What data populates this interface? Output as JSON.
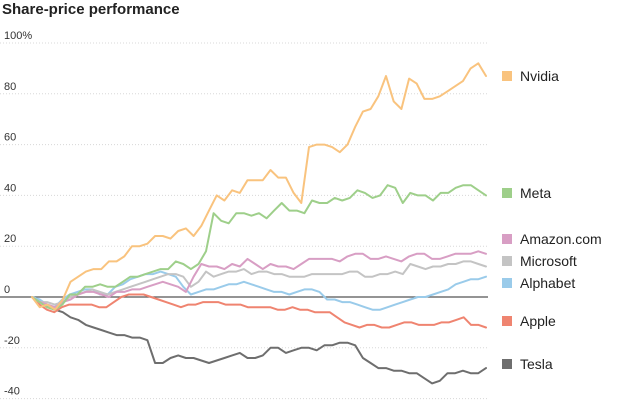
{
  "chart_data": {
    "type": "line",
    "title": "Share-price performance",
    "xlabel": "",
    "ylabel": "",
    "ylim": [
      -45,
      102
    ],
    "yticks": [
      100,
      80,
      60,
      40,
      20,
      0,
      -20,
      -40
    ],
    "ytick_labels": [
      "100%",
      "80",
      "60",
      "40",
      "20",
      "0",
      "-20",
      "-40"
    ],
    "series": [
      {
        "name": "Nvidia",
        "color": "#f9c37e",
        "values": [
          0,
          -4,
          -3,
          -5,
          -1,
          6,
          8,
          10,
          11,
          11,
          14,
          14,
          16,
          20,
          20,
          21,
          24,
          24,
          23,
          26,
          27,
          24,
          28,
          34,
          40,
          38,
          42,
          41,
          46,
          46,
          46,
          50,
          47,
          47,
          41,
          37,
          59,
          60,
          60,
          59,
          57,
          60,
          67,
          73,
          74,
          79,
          87,
          77,
          74,
          86,
          84,
          78,
          78,
          79,
          81,
          83,
          85,
          90,
          92,
          87
        ]
      },
      {
        "name": "Meta",
        "color": "#9ecf8a",
        "values": [
          0,
          -2,
          -4,
          -5,
          -3,
          1,
          1,
          4,
          4,
          5,
          4,
          4,
          6,
          8,
          8,
          9,
          10,
          11,
          11,
          14,
          13,
          11,
          13,
          18,
          33,
          30,
          29,
          33,
          33,
          32,
          33,
          31,
          34,
          37,
          34,
          34,
          33,
          38,
          37,
          37,
          39,
          38,
          39,
          42,
          41,
          39,
          40,
          44,
          43,
          37,
          41,
          40,
          40,
          38,
          41,
          41,
          43,
          44,
          44,
          42,
          40
        ]
      },
      {
        "name": "Amazon.com",
        "color": "#d89ec4",
        "values": [
          0,
          -2,
          -3,
          -4,
          -2,
          -1,
          1,
          2,
          2,
          1,
          0,
          2,
          2,
          3,
          3,
          4,
          5,
          6,
          5,
          4,
          2,
          8,
          13,
          12,
          12,
          11,
          13,
          12,
          15,
          13,
          11,
          13,
          12,
          12,
          11,
          13,
          15,
          15,
          15,
          15,
          14,
          16,
          17,
          17,
          15,
          15,
          16,
          15,
          14,
          16,
          17,
          17,
          15,
          15,
          16,
          17,
          17,
          17,
          18,
          17
        ]
      },
      {
        "name": "Microsoft",
        "color": "#c4c4c4",
        "values": [
          0,
          -2,
          -2,
          -3,
          -2,
          0,
          1,
          2,
          3,
          2,
          1,
          2,
          3,
          4,
          5,
          6,
          7,
          8,
          9,
          9,
          8,
          4,
          6,
          10,
          8,
          9,
          10,
          10,
          11,
          9,
          10,
          10,
          9,
          9,
          8,
          8,
          8,
          9,
          9,
          9,
          9,
          9,
          10,
          10,
          8,
          8,
          9,
          9,
          10,
          9,
          13,
          12,
          11,
          12,
          12,
          13,
          13,
          14,
          14,
          13,
          12
        ]
      },
      {
        "name": "Alphabet",
        "color": "#9acbea",
        "values": [
          0,
          -1,
          -3,
          -4,
          -1,
          1,
          2,
          3,
          3,
          1,
          1,
          4,
          5,
          7,
          8,
          9,
          9,
          10,
          9,
          8,
          4,
          1,
          2,
          3,
          3,
          4,
          5,
          5,
          6,
          5,
          4,
          3,
          2,
          2,
          1,
          2,
          3,
          3,
          2,
          -1,
          -1,
          -2,
          -2,
          -3,
          -4,
          -5,
          -5,
          -4,
          -3,
          -2,
          -1,
          0,
          0,
          1,
          2,
          3,
          5,
          6,
          7,
          7,
          8
        ]
      },
      {
        "name": "Apple",
        "color": "#ef8470",
        "values": [
          0,
          -3,
          -5,
          -6,
          -4,
          -3,
          -3,
          -3,
          -3,
          -4,
          -4,
          -2,
          0,
          1,
          1,
          1,
          0,
          -1,
          -2,
          -3,
          -4,
          -3,
          -3,
          -2,
          -2,
          -2,
          -3,
          -3,
          -3,
          -4,
          -4,
          -4,
          -4,
          -5,
          -5,
          -4,
          -5,
          -5,
          -6,
          -6,
          -6,
          -8,
          -10,
          -11,
          -12,
          -11,
          -11,
          -12,
          -12,
          -11,
          -10,
          -10,
          -11,
          -11,
          -11,
          -10,
          -10,
          -9,
          -8,
          -11,
          -11,
          -12
        ]
      },
      {
        "name": "Tesla",
        "color": "#6e6e6e",
        "values": [
          0,
          -2,
          -4,
          -5,
          -6,
          -8,
          -9,
          -11,
          -12,
          -13,
          -14,
          -15,
          -15,
          -16,
          -16,
          -17,
          -26,
          -26,
          -24,
          -23,
          -24,
          -24,
          -25,
          -26,
          -25,
          -24,
          -23,
          -22,
          -24,
          -24,
          -23,
          -20,
          -20,
          -22,
          -21,
          -20,
          -20,
          -21,
          -19,
          -19,
          -18,
          -18,
          -19,
          -24,
          -26,
          -28,
          -28,
          -29,
          -29,
          -30,
          -30,
          -32,
          -34,
          -33,
          -30,
          -30,
          -29,
          -30,
          -30,
          -28
        ]
      }
    ]
  }
}
